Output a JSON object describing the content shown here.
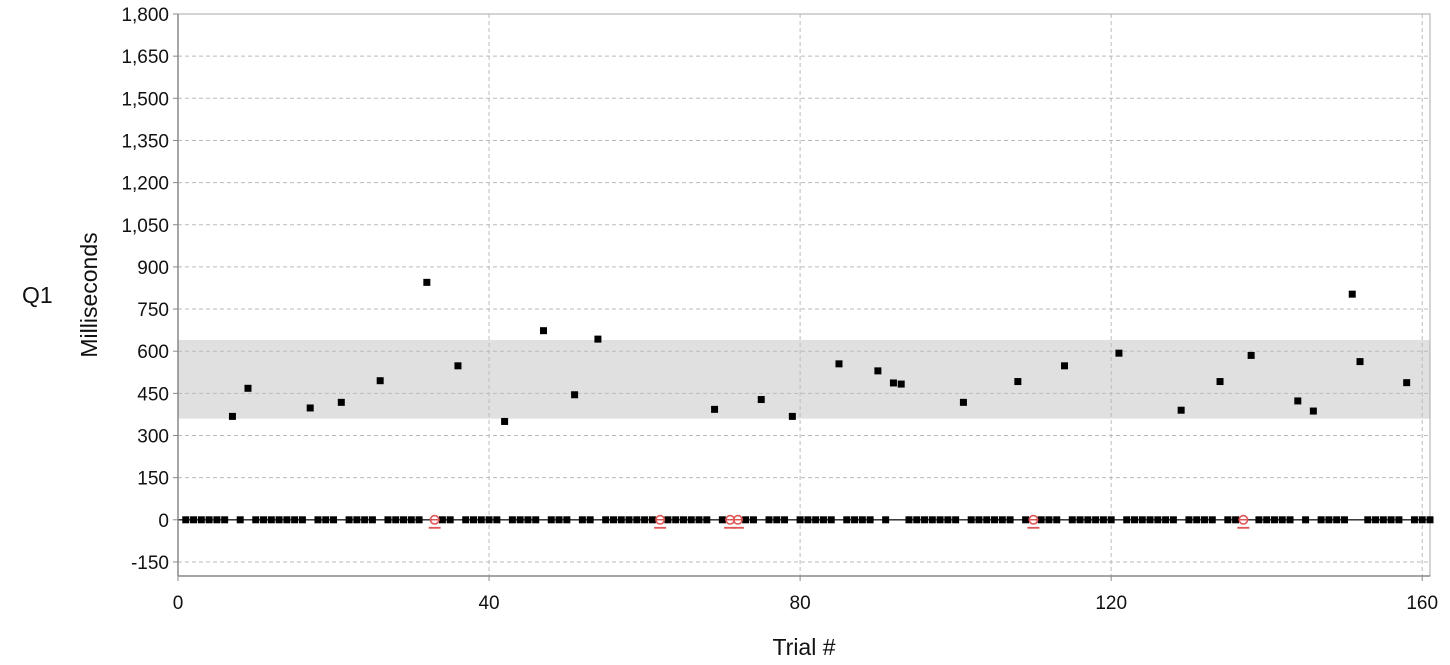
{
  "chart_data": {
    "type": "scatter",
    "title": "",
    "side_label": "Q1",
    "xlabel": "Trial #",
    "ylabel": "Milliseconds",
    "xlim": [
      0,
      161
    ],
    "ylim": [
      -200,
      1800
    ],
    "x_ticks": [
      0,
      40,
      80,
      120,
      160
    ],
    "x_tick_labels": [
      "0",
      "40",
      "80",
      "120",
      "160"
    ],
    "y_ticks": [
      -150,
      0,
      150,
      300,
      450,
      600,
      750,
      900,
      1050,
      1200,
      1350,
      1500,
      1650,
      1800
    ],
    "y_tick_labels": [
      "-150",
      "0",
      "150",
      "300",
      "450",
      "600",
      "750",
      "900",
      "1,050",
      "1,200",
      "1,350",
      "1,500",
      "1,650",
      "1,800"
    ],
    "grid": true,
    "reference_band": {
      "y_from": 360,
      "y_to": 640,
      "color": "#e0e0e0"
    },
    "reference_line_y": 0,
    "colors": {
      "points": "#000000",
      "errors": "#e05555",
      "grid": "#bbbbbb",
      "axis": "#888888"
    },
    "series": [
      {
        "values": [
          [
            1,
            0
          ],
          [
            2,
            0
          ],
          [
            3,
            0
          ],
          [
            4,
            0
          ],
          [
            5,
            0
          ],
          [
            6,
            0
          ],
          [
            7,
            368
          ],
          [
            8,
            0
          ],
          [
            9,
            468
          ],
          [
            10,
            0
          ],
          [
            11,
            0
          ],
          [
            12,
            0
          ],
          [
            13,
            0
          ],
          [
            14,
            0
          ],
          [
            15,
            0
          ],
          [
            16,
            0
          ],
          [
            17,
            398
          ],
          [
            18,
            0
          ],
          [
            19,
            0
          ],
          [
            20,
            0
          ],
          [
            21,
            418
          ],
          [
            22,
            0
          ],
          [
            23,
            0
          ],
          [
            24,
            0
          ],
          [
            25,
            0
          ],
          [
            26,
            495
          ],
          [
            27,
            0
          ],
          [
            28,
            0
          ],
          [
            29,
            0
          ],
          [
            30,
            0
          ],
          [
            31,
            0
          ],
          [
            32,
            845
          ],
          [
            34,
            0
          ],
          [
            35,
            0
          ],
          [
            36,
            548
          ],
          [
            37,
            0
          ],
          [
            38,
            0
          ],
          [
            39,
            0
          ],
          [
            40,
            0
          ],
          [
            41,
            0
          ],
          [
            42,
            350
          ],
          [
            43,
            0
          ],
          [
            44,
            0
          ],
          [
            45,
            0
          ],
          [
            46,
            0
          ],
          [
            47,
            673
          ],
          [
            48,
            0
          ],
          [
            49,
            0
          ],
          [
            50,
            0
          ],
          [
            51,
            445
          ],
          [
            52,
            0
          ],
          [
            53,
            0
          ],
          [
            54,
            643
          ],
          [
            55,
            0
          ],
          [
            56,
            0
          ],
          [
            57,
            0
          ],
          [
            58,
            0
          ],
          [
            59,
            0
          ],
          [
            60,
            0
          ],
          [
            61,
            0
          ],
          [
            63,
            0
          ],
          [
            64,
            0
          ],
          [
            65,
            0
          ],
          [
            66,
            0
          ],
          [
            67,
            0
          ],
          [
            68,
            0
          ],
          [
            69,
            393
          ],
          [
            70,
            0
          ],
          [
            73,
            0
          ],
          [
            74,
            0
          ],
          [
            75,
            428
          ],
          [
            76,
            0
          ],
          [
            77,
            0
          ],
          [
            78,
            0
          ],
          [
            79,
            368
          ],
          [
            80,
            0
          ],
          [
            81,
            0
          ],
          [
            82,
            0
          ],
          [
            83,
            0
          ],
          [
            84,
            0
          ],
          [
            85,
            555
          ],
          [
            86,
            0
          ],
          [
            87,
            0
          ],
          [
            88,
            0
          ],
          [
            89,
            0
          ],
          [
            90,
            530
          ],
          [
            91,
            0
          ],
          [
            92,
            487
          ],
          [
            93,
            483
          ],
          [
            94,
            0
          ],
          [
            95,
            0
          ],
          [
            96,
            0
          ],
          [
            97,
            0
          ],
          [
            98,
            0
          ],
          [
            99,
            0
          ],
          [
            100,
            0
          ],
          [
            101,
            418
          ],
          [
            102,
            0
          ],
          [
            103,
            0
          ],
          [
            104,
            0
          ],
          [
            105,
            0
          ],
          [
            106,
            0
          ],
          [
            107,
            0
          ],
          [
            108,
            492
          ],
          [
            109,
            0
          ],
          [
            111,
            0
          ],
          [
            112,
            0
          ],
          [
            113,
            0
          ],
          [
            114,
            548
          ],
          [
            115,
            0
          ],
          [
            116,
            0
          ],
          [
            117,
            0
          ],
          [
            118,
            0
          ],
          [
            119,
            0
          ],
          [
            120,
            0
          ],
          [
            121,
            593
          ],
          [
            122,
            0
          ],
          [
            123,
            0
          ],
          [
            124,
            0
          ],
          [
            125,
            0
          ],
          [
            126,
            0
          ],
          [
            127,
            0
          ],
          [
            128,
            0
          ],
          [
            129,
            390
          ],
          [
            130,
            0
          ],
          [
            131,
            0
          ],
          [
            132,
            0
          ],
          [
            133,
            0
          ],
          [
            134,
            492
          ],
          [
            135,
            0
          ],
          [
            136,
            0
          ],
          [
            138,
            585
          ],
          [
            139,
            0
          ],
          [
            140,
            0
          ],
          [
            141,
            0
          ],
          [
            142,
            0
          ],
          [
            143,
            0
          ],
          [
            144,
            423
          ],
          [
            145,
            0
          ],
          [
            146,
            387
          ],
          [
            147,
            0
          ],
          [
            148,
            0
          ],
          [
            149,
            0
          ],
          [
            150,
            0
          ],
          [
            151,
            803
          ],
          [
            152,
            563
          ],
          [
            153,
            0
          ],
          [
            154,
            0
          ],
          [
            155,
            0
          ],
          [
            156,
            0
          ],
          [
            157,
            0
          ],
          [
            158,
            488
          ],
          [
            159,
            0
          ],
          [
            160,
            0
          ],
          [
            161,
            0
          ]
        ]
      },
      {
        "marker": "error",
        "values": [
          [
            33,
            0
          ],
          [
            62,
            0
          ],
          [
            71,
            0
          ],
          [
            72,
            0
          ],
          [
            110,
            0
          ],
          [
            137,
            0
          ]
        ]
      }
    ]
  }
}
